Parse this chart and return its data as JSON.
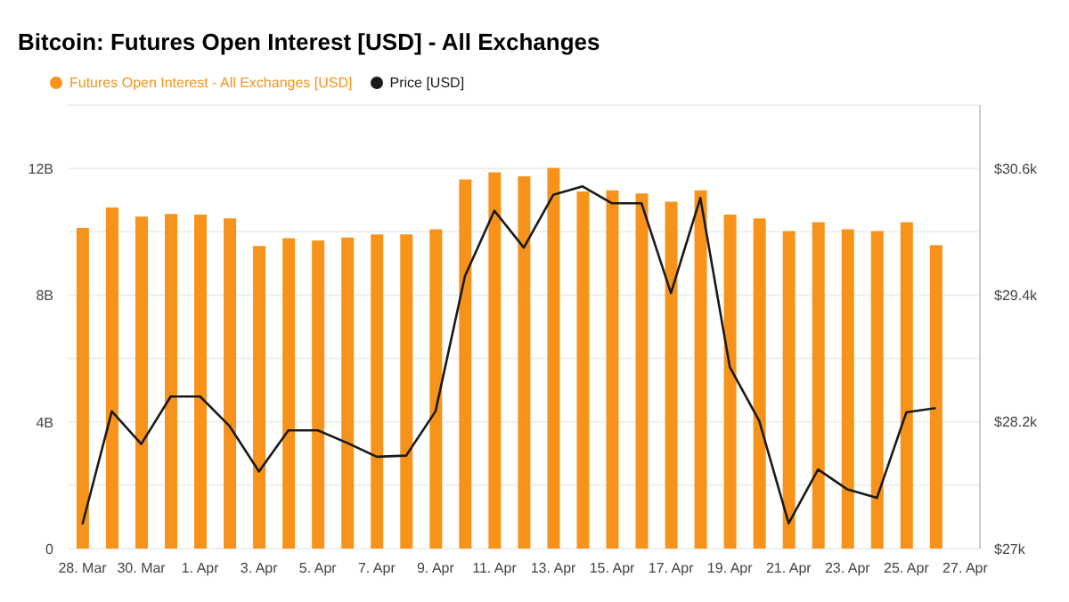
{
  "chart_data": {
    "type": "bar",
    "title": "Bitcoin: Futures Open Interest [USD] - All Exchanges",
    "categories": [
      "28. Mar",
      null,
      "30. Mar",
      null,
      "1. Apr",
      null,
      "3. Apr",
      null,
      "5. Apr",
      null,
      "7. Apr",
      null,
      "9. Apr",
      null,
      "11. Apr",
      null,
      "13. Apr",
      null,
      "15. Apr",
      null,
      "17. Apr",
      null,
      "19. Apr",
      null,
      "21. Apr",
      null,
      "23. Apr",
      null,
      "25. Apr",
      null,
      "27. Apr"
    ],
    "series": [
      {
        "name": "Futures Open Interest - All Exchanges [USD]",
        "color": "#f7931a",
        "values": [
          10.12,
          10.77,
          10.48,
          10.56,
          10.54,
          10.42,
          9.55,
          9.8,
          9.73,
          9.82,
          9.92,
          9.92,
          10.08,
          11.65,
          11.88,
          11.75,
          12.02,
          11.27,
          11.31,
          11.21,
          10.95,
          11.31,
          10.54,
          10.42,
          10.02,
          10.3,
          10.08,
          10.02,
          10.3,
          9.58,
          null
        ]
      },
      {
        "name": "Price [USD]",
        "type": "line",
        "axis": "y2",
        "color": "#1a1a1a",
        "values": [
          27.23,
          28.3,
          27.99,
          28.44,
          28.44,
          28.16,
          27.73,
          28.12,
          28.12,
          28.0,
          27.87,
          27.88,
          28.3,
          29.58,
          30.2,
          29.85,
          30.35,
          30.43,
          30.27,
          30.27,
          29.42,
          30.32,
          28.72,
          28.21,
          27.24,
          27.75,
          27.56,
          27.48,
          28.29,
          28.33,
          null
        ]
      }
    ],
    "ylim": [
      0,
      14
    ],
    "yticks": [
      0,
      {
        "value": 2,
        "label": null
      },
      {
        "value": 4,
        "label": "4B"
      },
      {
        "value": 6,
        "label": null
      },
      {
        "value": 8,
        "label": "8B"
      },
      {
        "value": 10,
        "label": null
      },
      {
        "value": 12,
        "label": "12B"
      },
      {
        "value": 14,
        "label": null
      }
    ],
    "y2lim": [
      27,
      31.2
    ],
    "y2ticks": [
      {
        "value": 27,
        "label": "$27k"
      },
      {
        "value": 28.2,
        "label": "$28.2k"
      },
      {
        "value": 29.4,
        "label": "$29.4k"
      },
      {
        "value": 30.6,
        "label": "$30.6k"
      }
    ],
    "grid": "y",
    "legend": "top left",
    "marker": "none"
  }
}
